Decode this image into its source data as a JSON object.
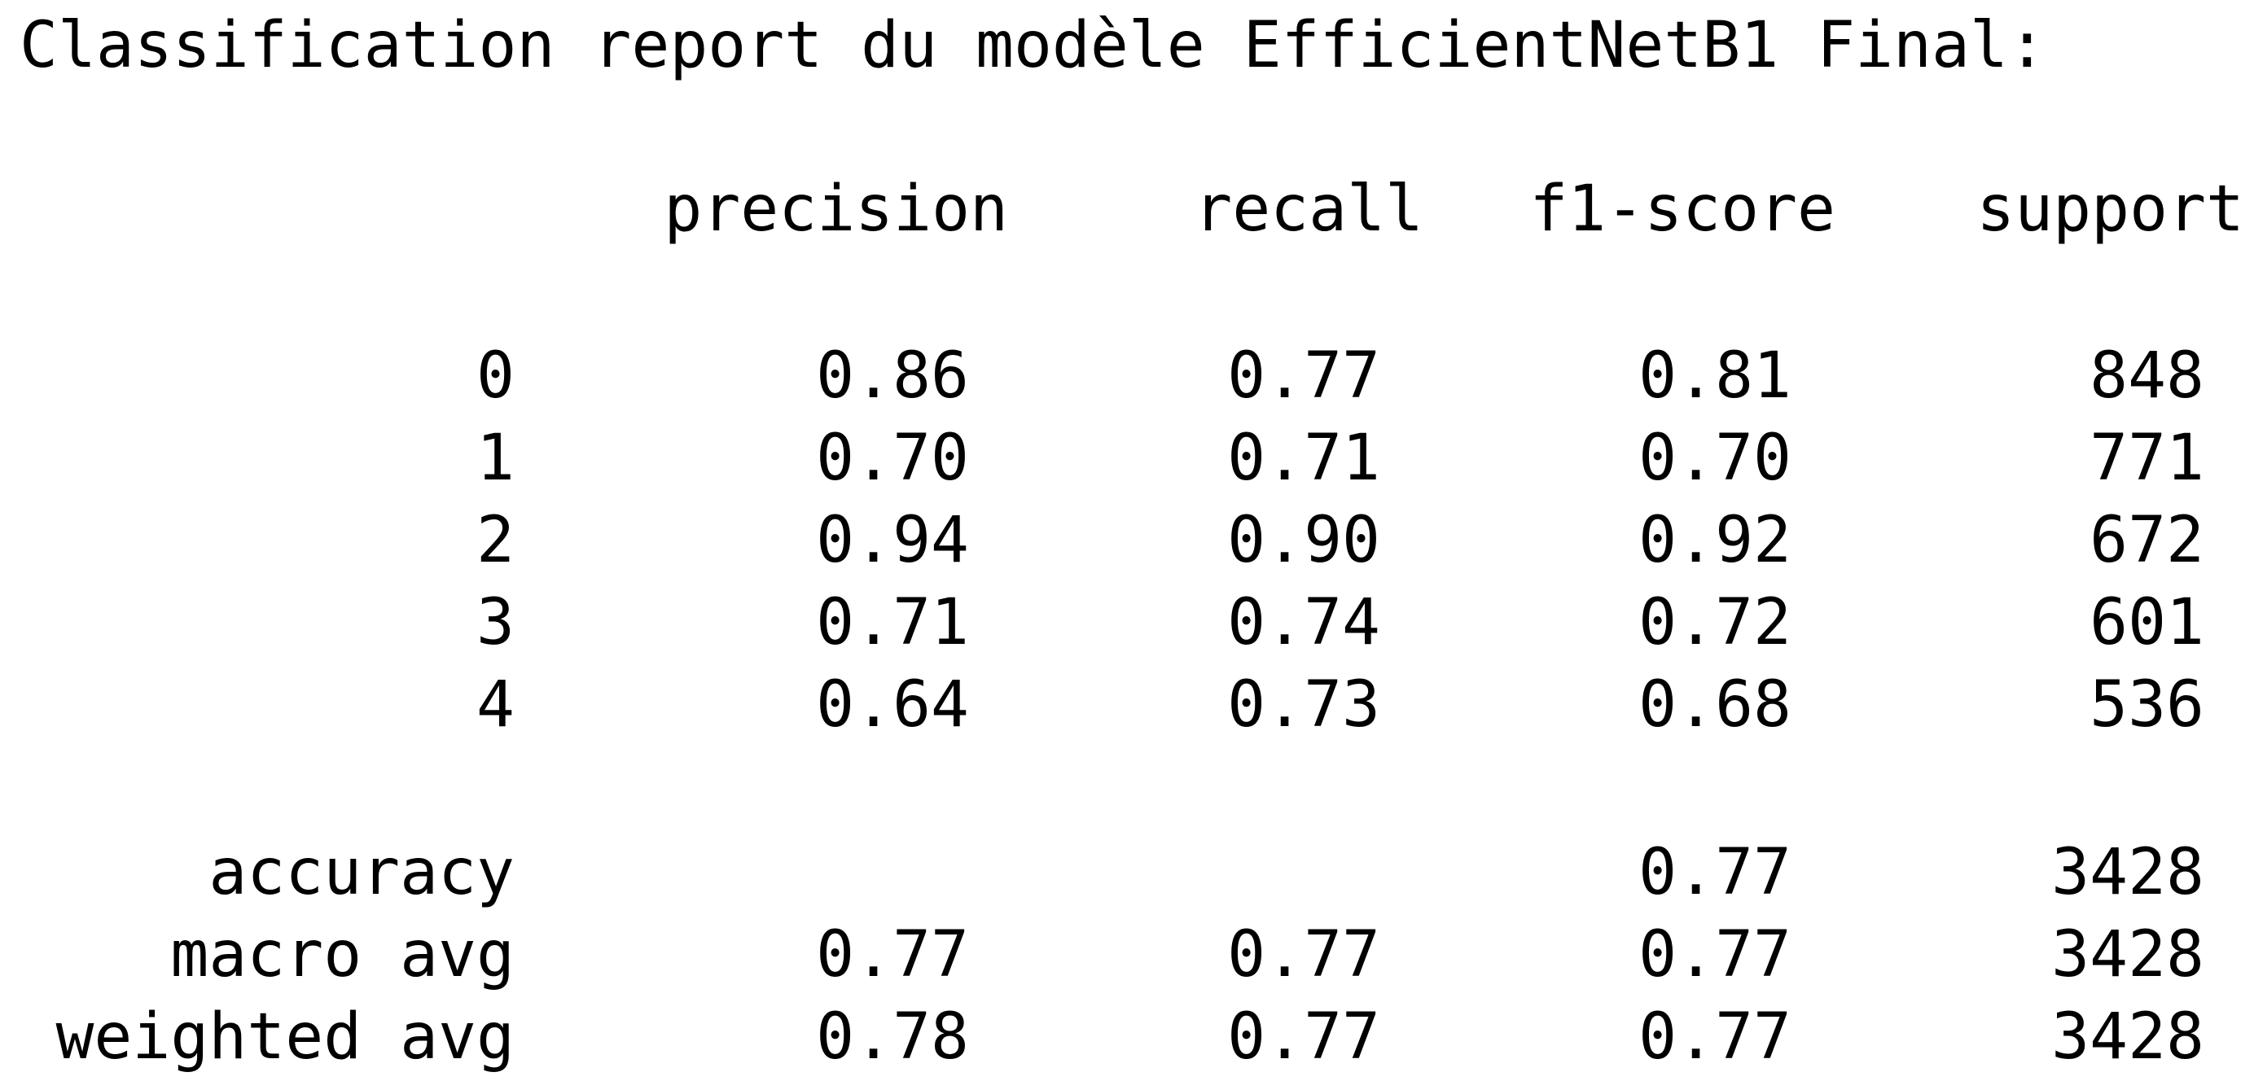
{
  "title": "Classification report du modèle EfficientNetB1 Final:",
  "columns": [
    "precision",
    "recall",
    "f1-score",
    "support"
  ],
  "rows": [
    {
      "label": "0",
      "precision": "0.86",
      "recall": "0.77",
      "f1": "0.81",
      "support": "848"
    },
    {
      "label": "1",
      "precision": "0.70",
      "recall": "0.71",
      "f1": "0.70",
      "support": "771"
    },
    {
      "label": "2",
      "precision": "0.94",
      "recall": "0.90",
      "f1": "0.92",
      "support": "672"
    },
    {
      "label": "3",
      "precision": "0.71",
      "recall": "0.74",
      "f1": "0.72",
      "support": "601"
    },
    {
      "label": "4",
      "precision": "0.64",
      "recall": "0.73",
      "f1": "0.68",
      "support": "536"
    }
  ],
  "summary": [
    {
      "label": "accuracy",
      "precision": "",
      "recall": "",
      "f1": "0.77",
      "support": "3428"
    },
    {
      "label": "macro avg",
      "precision": "0.77",
      "recall": "0.77",
      "f1": "0.77",
      "support": "3428"
    },
    {
      "label": "weighted avg",
      "precision": "0.78",
      "recall": "0.77",
      "f1": "0.77",
      "support": "3428"
    }
  ]
}
